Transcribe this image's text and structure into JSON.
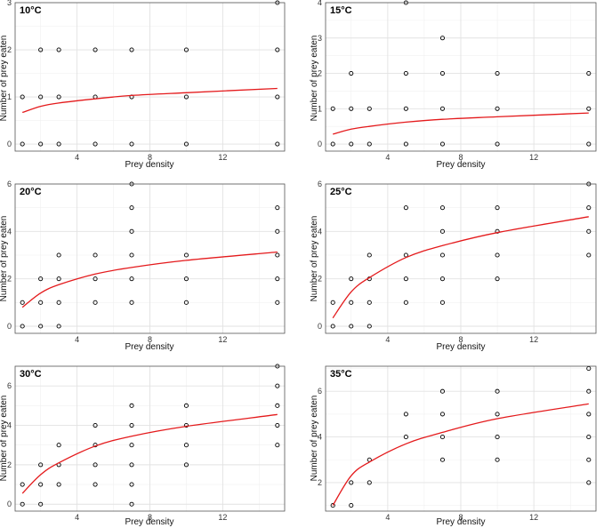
{
  "chart_data": [
    {
      "type": "scatter",
      "title": "10°C",
      "title_base": "10",
      "title_unit": "°C",
      "xlabel": "Prey density",
      "ylabel": "Number of prey eaten",
      "xlim": [
        0.6,
        15.4
      ],
      "ylim": [
        -0.15,
        3.0
      ],
      "xticks": [
        4,
        8,
        12
      ],
      "yticks": [
        0,
        1,
        2,
        3
      ],
      "points": [
        [
          1,
          1
        ],
        [
          1,
          0
        ],
        [
          2,
          2
        ],
        [
          2,
          1
        ],
        [
          2,
          0
        ],
        [
          3,
          2
        ],
        [
          3,
          1
        ],
        [
          3,
          0
        ],
        [
          5,
          2
        ],
        [
          5,
          1
        ],
        [
          5,
          0
        ],
        [
          7,
          2
        ],
        [
          7,
          1
        ],
        [
          7,
          0
        ],
        [
          10,
          2
        ],
        [
          10,
          1
        ],
        [
          10,
          0
        ],
        [
          15,
          3
        ],
        [
          15,
          2
        ],
        [
          15,
          1
        ],
        [
          15,
          0
        ]
      ],
      "fit": {
        "name": "fitted curve",
        "color": "#e41a1c",
        "x": [
          1,
          2,
          3,
          5,
          7,
          10,
          15
        ],
        "y": [
          0.67,
          0.8,
          0.87,
          0.96,
          1.03,
          1.09,
          1.18
        ]
      }
    },
    {
      "type": "scatter",
      "title": "15°C",
      "title_base": "15",
      "title_unit": "°C",
      "xlabel": "Prey density",
      "ylabel": "Number of prey eaten",
      "xlim": [
        0.6,
        15.4
      ],
      "ylim": [
        -0.2,
        4.0
      ],
      "xticks": [
        4,
        8,
        12
      ],
      "yticks": [
        0,
        1,
        2,
        3,
        4
      ],
      "points": [
        [
          1,
          1
        ],
        [
          1,
          0
        ],
        [
          2,
          2
        ],
        [
          2,
          1
        ],
        [
          2,
          0
        ],
        [
          3,
          1
        ],
        [
          3,
          0
        ],
        [
          5,
          4
        ],
        [
          5,
          2
        ],
        [
          5,
          1
        ],
        [
          5,
          0
        ],
        [
          7,
          3
        ],
        [
          7,
          2
        ],
        [
          7,
          1
        ],
        [
          7,
          0
        ],
        [
          10,
          2
        ],
        [
          10,
          1
        ],
        [
          10,
          0
        ],
        [
          15,
          2
        ],
        [
          15,
          1
        ],
        [
          15,
          0
        ]
      ],
      "fit": {
        "name": "fitted curve",
        "color": "#e41a1c",
        "x": [
          1,
          2,
          3,
          5,
          7,
          10,
          15
        ],
        "y": [
          0.28,
          0.42,
          0.5,
          0.62,
          0.7,
          0.77,
          0.88
        ]
      }
    },
    {
      "type": "scatter",
      "title": "20°C",
      "title_base": "20",
      "title_unit": "°C",
      "xlabel": "Prey density",
      "ylabel": "Number of prey eaten",
      "xlim": [
        0.6,
        15.4
      ],
      "ylim": [
        -0.3,
        6.0
      ],
      "xticks": [
        4,
        8,
        12
      ],
      "yticks": [
        0,
        2,
        4,
        6
      ],
      "points": [
        [
          1,
          1
        ],
        [
          1,
          0
        ],
        [
          2,
          2
        ],
        [
          2,
          1
        ],
        [
          2,
          0
        ],
        [
          3,
          3
        ],
        [
          3,
          2
        ],
        [
          3,
          1
        ],
        [
          3,
          0
        ],
        [
          5,
          3
        ],
        [
          5,
          2
        ],
        [
          5,
          1
        ],
        [
          7,
          6
        ],
        [
          7,
          5
        ],
        [
          7,
          4
        ],
        [
          7,
          3
        ],
        [
          7,
          2
        ],
        [
          7,
          1
        ],
        [
          10,
          3
        ],
        [
          10,
          2
        ],
        [
          10,
          1
        ],
        [
          15,
          5
        ],
        [
          15,
          4
        ],
        [
          15,
          3
        ],
        [
          15,
          2
        ],
        [
          15,
          1
        ]
      ],
      "fit": {
        "name": "fitted curve",
        "color": "#e41a1c",
        "x": [
          1,
          2,
          3,
          5,
          7,
          10,
          15
        ],
        "y": [
          0.8,
          1.4,
          1.75,
          2.2,
          2.48,
          2.78,
          3.13
        ]
      }
    },
    {
      "type": "scatter",
      "title": "25°C",
      "title_base": "25",
      "title_unit": "°C",
      "xlabel": "Prey density",
      "ylabel": "Number of prey eaten",
      "xlim": [
        0.6,
        15.4
      ],
      "ylim": [
        -0.3,
        6.0
      ],
      "xticks": [
        4,
        8,
        12
      ],
      "yticks": [
        0,
        2,
        4,
        6
      ],
      "points": [
        [
          1,
          1
        ],
        [
          1,
          0
        ],
        [
          2,
          2
        ],
        [
          2,
          1
        ],
        [
          2,
          0
        ],
        [
          3,
          3
        ],
        [
          3,
          2
        ],
        [
          3,
          1
        ],
        [
          3,
          0
        ],
        [
          5,
          5
        ],
        [
          5,
          3
        ],
        [
          5,
          2
        ],
        [
          5,
          1
        ],
        [
          7,
          5
        ],
        [
          7,
          4
        ],
        [
          7,
          3
        ],
        [
          7,
          2
        ],
        [
          7,
          1
        ],
        [
          10,
          5
        ],
        [
          10,
          4
        ],
        [
          10,
          3
        ],
        [
          10,
          2
        ],
        [
          15,
          6
        ],
        [
          15,
          5
        ],
        [
          15,
          4
        ],
        [
          15,
          3
        ]
      ],
      "fit": {
        "name": "fitted curve",
        "color": "#e41a1c",
        "x": [
          1,
          2,
          3,
          5,
          7,
          10,
          15
        ],
        "y": [
          0.35,
          1.45,
          2.05,
          2.9,
          3.4,
          3.95,
          4.62
        ]
      }
    },
    {
      "type": "scatter",
      "title": "30°C",
      "title_base": "30",
      "title_unit": "°C",
      "xlabel": "Prey density",
      "ylabel": "Number of prey eaten",
      "xlim": [
        0.6,
        15.4
      ],
      "ylim": [
        -0.35,
        7.0
      ],
      "xticks": [
        4,
        8,
        12
      ],
      "yticks": [
        0,
        2,
        4,
        6
      ],
      "points": [
        [
          1,
          1
        ],
        [
          1,
          0
        ],
        [
          2,
          2
        ],
        [
          2,
          1
        ],
        [
          2,
          0
        ],
        [
          3,
          3
        ],
        [
          3,
          2
        ],
        [
          3,
          1
        ],
        [
          5,
          4
        ],
        [
          5,
          3
        ],
        [
          5,
          2
        ],
        [
          5,
          1
        ],
        [
          7,
          5
        ],
        [
          7,
          4
        ],
        [
          7,
          3
        ],
        [
          7,
          2
        ],
        [
          7,
          1
        ],
        [
          7,
          0
        ],
        [
          10,
          5
        ],
        [
          10,
          4
        ],
        [
          10,
          3
        ],
        [
          10,
          2
        ],
        [
          15,
          7
        ],
        [
          15,
          6
        ],
        [
          15,
          5
        ],
        [
          15,
          4
        ],
        [
          15,
          3
        ]
      ],
      "fit": {
        "name": "fitted curve",
        "color": "#e41a1c",
        "x": [
          1,
          2,
          3,
          5,
          7,
          10,
          15
        ],
        "y": [
          0.55,
          1.5,
          2.1,
          2.95,
          3.45,
          3.95,
          4.55
        ]
      }
    },
    {
      "type": "scatter",
      "title": "35°C",
      "title_base": "35",
      "title_unit": "°C",
      "xlabel": "Prey density",
      "ylabel": "Number of prey eaten",
      "xlim": [
        0.6,
        15.4
      ],
      "ylim": [
        0.75,
        7.1
      ],
      "xticks": [
        4,
        8,
        12
      ],
      "yticks": [
        2,
        4,
        6
      ],
      "points": [
        [
          1,
          1
        ],
        [
          2,
          2
        ],
        [
          2,
          1
        ],
        [
          3,
          3
        ],
        [
          3,
          2
        ],
        [
          5,
          5
        ],
        [
          5,
          4
        ],
        [
          7,
          6
        ],
        [
          7,
          5
        ],
        [
          7,
          4
        ],
        [
          7,
          3
        ],
        [
          10,
          6
        ],
        [
          10,
          5
        ],
        [
          10,
          4
        ],
        [
          10,
          3
        ],
        [
          15,
          7
        ],
        [
          15,
          6
        ],
        [
          15,
          5
        ],
        [
          15,
          4
        ],
        [
          15,
          3
        ],
        [
          15,
          2
        ]
      ],
      "fit": {
        "name": "fitted curve",
        "color": "#e41a1c",
        "x": [
          1,
          2,
          3,
          5,
          7,
          10,
          15
        ],
        "y": [
          1.0,
          2.3,
          2.9,
          3.7,
          4.2,
          4.8,
          5.45
        ]
      }
    }
  ]
}
